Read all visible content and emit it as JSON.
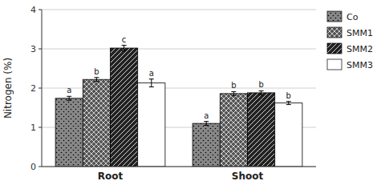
{
  "chart_data": {
    "type": "bar",
    "categories": [
      "Root",
      "Shoot"
    ],
    "series": [
      {
        "name": "Co",
        "color": "#888888",
        "values": [
          1.74,
          1.1
        ],
        "errors": [
          0.05,
          0.05
        ],
        "annotations": [
          "a",
          "a"
        ]
      },
      {
        "name": "SMM1",
        "color": "#555555",
        "values": [
          2.22,
          1.86
        ],
        "errors": [
          0.05,
          0.05
        ],
        "annotations": [
          "b",
          "b"
        ]
      },
      {
        "name": "SMM2",
        "color": "#222222",
        "values": [
          3.02,
          1.88
        ],
        "errors": [
          0.07,
          0.05
        ],
        "annotations": [
          "c",
          "b"
        ]
      },
      {
        "name": "SMM3",
        "color": "#ffffff",
        "values": [
          2.13,
          1.62
        ],
        "errors": [
          0.1,
          0.04
        ],
        "annotations": [
          "a",
          "b"
        ]
      }
    ],
    "y_label": "Nitrogen (%)",
    "ylim": [
      0,
      4
    ],
    "yticks": [
      0,
      1,
      2,
      3,
      4
    ],
    "grid": true,
    "legend": "right"
  }
}
